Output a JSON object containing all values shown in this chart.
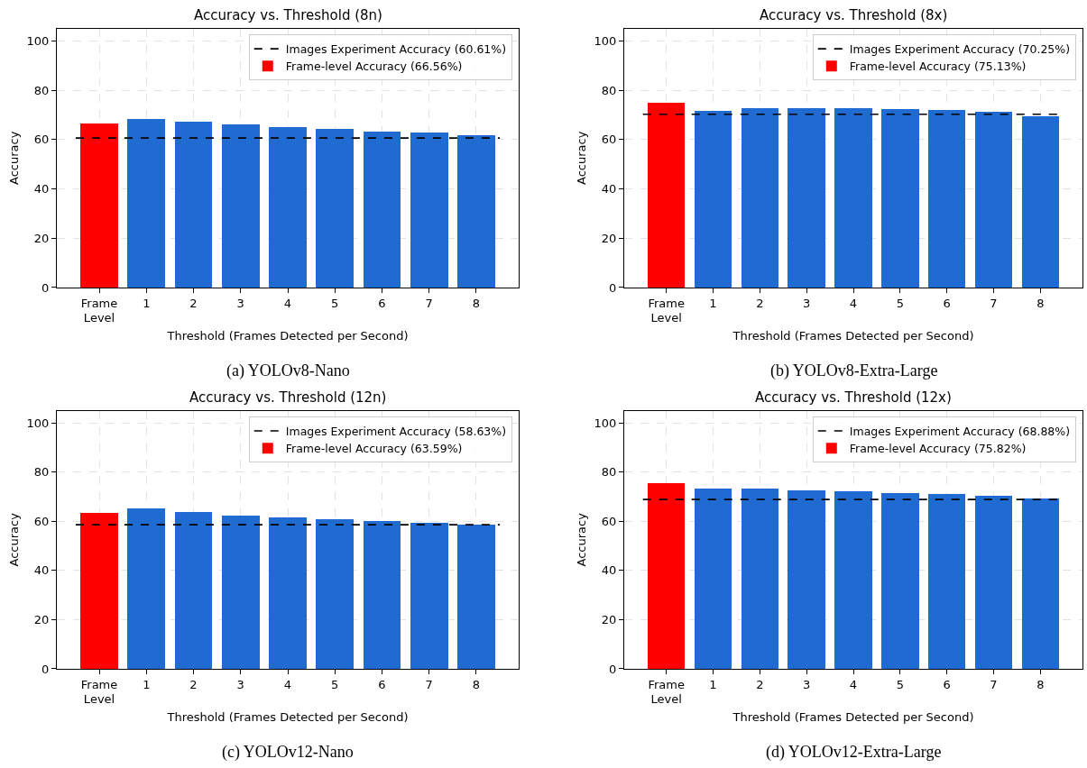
{
  "chart_data": [
    {
      "type": "bar",
      "title": "Accuracy vs. Threshold (8n)",
      "xlabel": "Threshold (Frames Detected per Second)",
      "ylabel": "Accuracy",
      "categories": [
        "Frame\nLevel",
        "1",
        "2",
        "3",
        "4",
        "5",
        "6",
        "7",
        "8"
      ],
      "series": [
        {
          "name": "Frame-level Accuracy (66.56%)",
          "color": "#ff0000",
          "values": [
            66.56,
            null,
            null,
            null,
            null,
            null,
            null,
            null,
            null
          ]
        },
        {
          "color": "#1f6bd1",
          "values": [
            null,
            68.6,
            67.4,
            66.3,
            65.1,
            64.3,
            63.4,
            62.8,
            61.8
          ]
        }
      ],
      "ref_lines": [
        {
          "axis": "y",
          "value": 60.61,
          "label": "Images Experiment Accuracy (60.61%)",
          "color": "#000000",
          "line_style": "dashed"
        }
      ],
      "ylim": [
        0,
        105
      ],
      "yticks": [
        0,
        20,
        40,
        60,
        80,
        100
      ],
      "grid": true,
      "legend": "top right",
      "annotations": [
        "(a) YOLOv8-Nano"
      ]
    },
    {
      "type": "bar",
      "title": "Accuracy vs. Threshold (8x)",
      "xlabel": "Threshold (Frames Detected per Second)",
      "ylabel": "Accuracy",
      "categories": [
        "Frame\nLevel",
        "1",
        "2",
        "3",
        "4",
        "5",
        "6",
        "7",
        "8"
      ],
      "series": [
        {
          "name": "Frame-level Accuracy (75.13%)",
          "color": "#ff0000",
          "values": [
            75.13,
            null,
            null,
            null,
            null,
            null,
            null,
            null,
            null
          ]
        },
        {
          "color": "#1f6bd1",
          "values": [
            null,
            71.6,
            73.0,
            73.0,
            73.0,
            72.5,
            72.0,
            71.3,
            69.5
          ]
        }
      ],
      "ref_lines": [
        {
          "axis": "y",
          "value": 70.25,
          "label": "Images Experiment Accuracy (70.25%)",
          "color": "#000000",
          "line_style": "dashed"
        }
      ],
      "ylim": [
        0,
        105
      ],
      "yticks": [
        0,
        20,
        40,
        60,
        80,
        100
      ],
      "grid": true,
      "legend": "top right",
      "annotations": [
        "(b) YOLOv8-Extra-Large"
      ]
    },
    {
      "type": "bar",
      "title": "Accuracy vs. Threshold (12n)",
      "xlabel": "Threshold (Frames Detected per Second)",
      "ylabel": "Accuracy",
      "categories": [
        "Frame\nLevel",
        "1",
        "2",
        "3",
        "4",
        "5",
        "6",
        "7",
        "8"
      ],
      "series": [
        {
          "name": "Frame-level Accuracy (63.59%)",
          "color": "#ff0000",
          "values": [
            63.59,
            null,
            null,
            null,
            null,
            null,
            null,
            null,
            null
          ]
        },
        {
          "color": "#1f6bd1",
          "values": [
            null,
            65.3,
            63.8,
            62.6,
            61.6,
            60.9,
            60.1,
            59.6,
            58.9
          ]
        }
      ],
      "ref_lines": [
        {
          "axis": "y",
          "value": 58.63,
          "label": "Images Experiment Accuracy (58.63%)",
          "color": "#000000",
          "line_style": "dashed"
        }
      ],
      "ylim": [
        0,
        105
      ],
      "yticks": [
        0,
        20,
        40,
        60,
        80,
        100
      ],
      "grid": true,
      "legend": "top right",
      "annotations": [
        "(c) YOLOv12-Nano"
      ]
    },
    {
      "type": "bar",
      "title": "Accuracy vs. Threshold (12x)",
      "xlabel": "Threshold (Frames Detected per Second)",
      "ylabel": "Accuracy",
      "categories": [
        "Frame\nLevel",
        "1",
        "2",
        "3",
        "4",
        "5",
        "6",
        "7",
        "8"
      ],
      "series": [
        {
          "name": "Frame-level Accuracy (75.82%)",
          "color": "#ff0000",
          "values": [
            75.82,
            null,
            null,
            null,
            null,
            null,
            null,
            null,
            null
          ]
        },
        {
          "color": "#1f6bd1",
          "values": [
            null,
            73.4,
            73.4,
            72.8,
            72.2,
            71.7,
            71.2,
            70.6,
            69.3
          ]
        }
      ],
      "ref_lines": [
        {
          "axis": "y",
          "value": 68.88,
          "label": "Images Experiment Accuracy (68.88%)",
          "color": "#000000",
          "line_style": "dashed"
        }
      ],
      "ylim": [
        0,
        105
      ],
      "yticks": [
        0,
        20,
        40,
        60,
        80,
        100
      ],
      "grid": true,
      "legend": "top right",
      "annotations": [
        "(d) YOLOv12-Extra-Large"
      ]
    }
  ]
}
